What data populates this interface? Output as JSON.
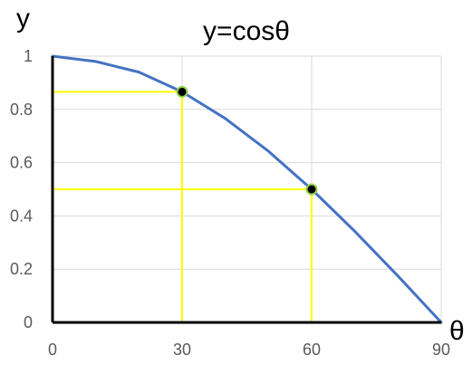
{
  "chart_data": {
    "type": "line",
    "title": "y=cosθ",
    "xlabel": "θ",
    "ylabel": "y",
    "xlim": [
      0,
      90
    ],
    "ylim": [
      0,
      1
    ],
    "xticks": [
      0,
      30,
      60,
      90
    ],
    "yticks": [
      0,
      0.2,
      0.4,
      0.6,
      0.8,
      1
    ],
    "xtick_labels": [
      "0",
      "30",
      "60",
      "90"
    ],
    "ytick_labels": [
      "0",
      "0.2",
      "0.4",
      "0.6",
      "0.8",
      "1"
    ],
    "grid": true,
    "series": [
      {
        "color": "#4472c4",
        "x": [
          0,
          10,
          20,
          30,
          40,
          50,
          60,
          70,
          80,
          90
        ],
        "y": [
          1,
          0.98,
          0.94,
          0.866,
          0.766,
          0.643,
          0.5,
          0.342,
          0.174,
          0
        ]
      }
    ],
    "highlight_points": [
      {
        "x": 30,
        "y": 0.866
      },
      {
        "x": 60,
        "y": 0.5
      }
    ],
    "guide_color": "#ffff00",
    "point_fill": "#000000",
    "point_stroke": "#92d050"
  }
}
